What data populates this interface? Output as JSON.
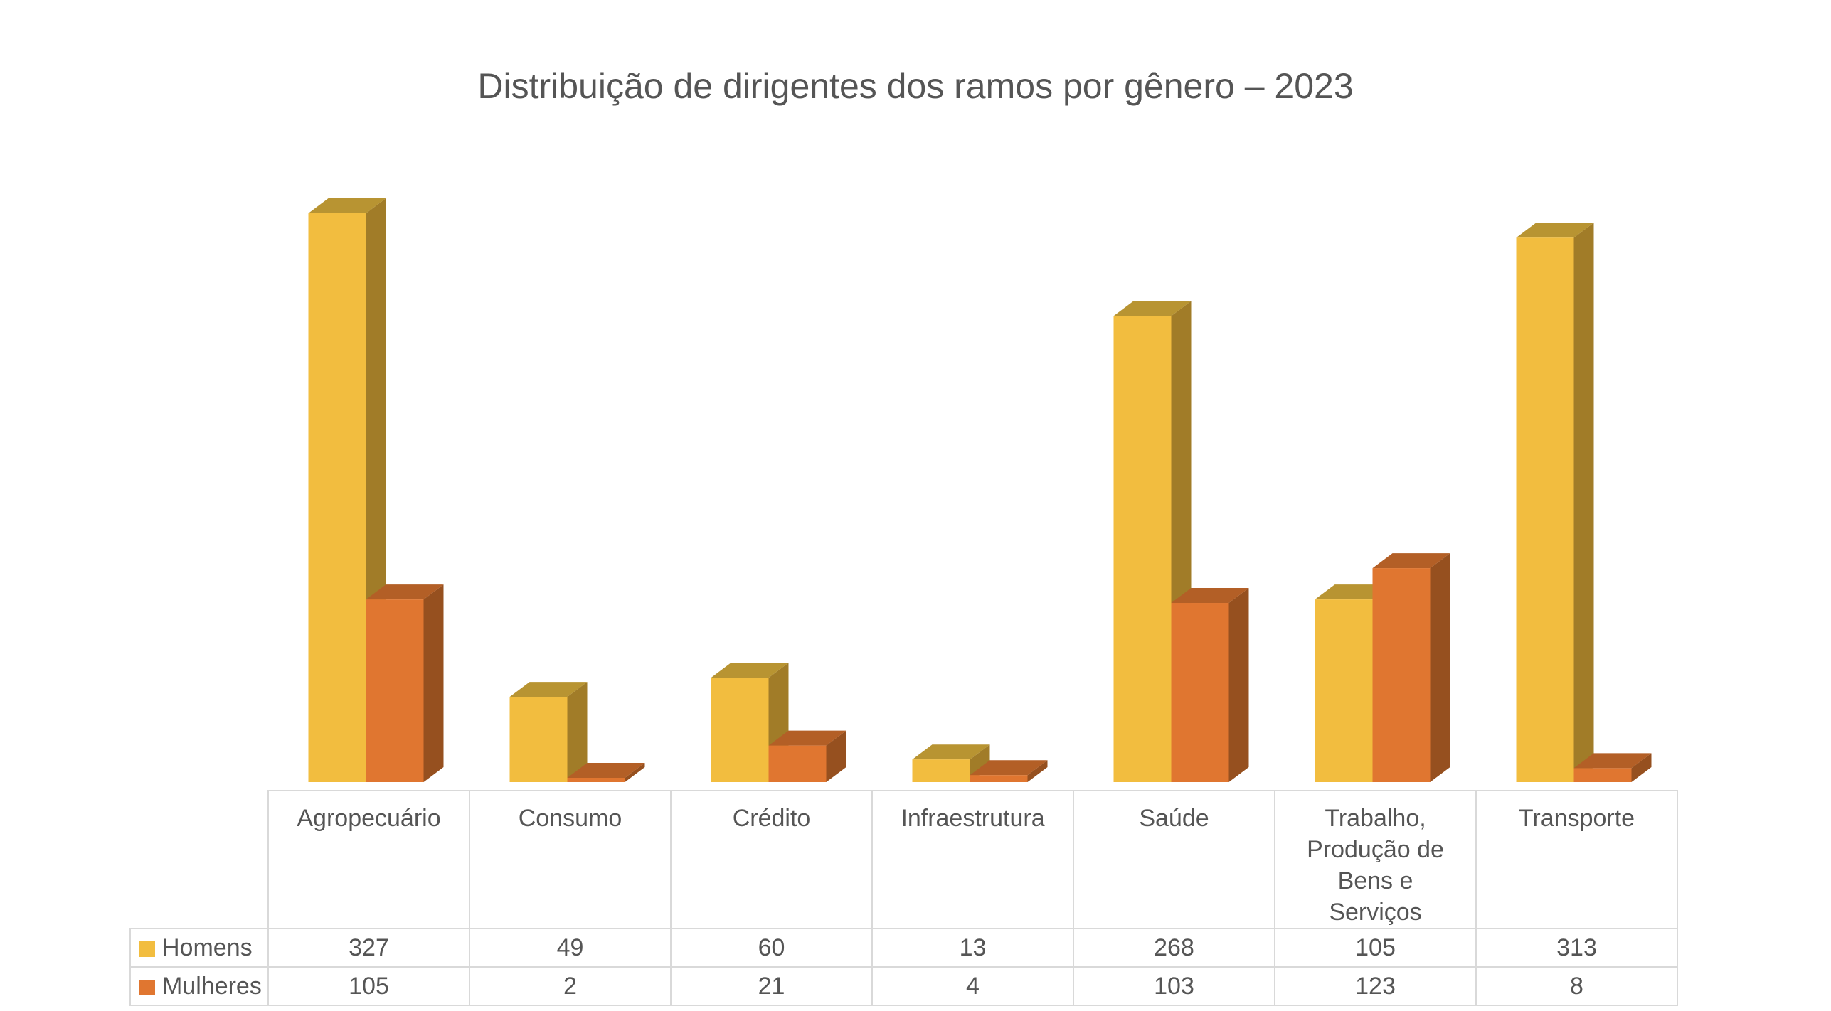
{
  "chart_data": {
    "type": "bar",
    "title": "Distribuição de dirigentes dos ramos por gênero – 2023",
    "categories": [
      "Agropecuário",
      "Consumo",
      "Crédito",
      "Infraestrutura",
      "Saúde",
      "Trabalho, Produção de Bens e Serviços",
      "Transporte"
    ],
    "series": [
      {
        "name": "Homens",
        "values": [
          327,
          49,
          60,
          13,
          268,
          105,
          313
        ],
        "color": "#F2BD3F",
        "side_color": "#A17C28",
        "top_color": "#B89432"
      },
      {
        "name": "Mulheres",
        "values": [
          105,
          2,
          21,
          4,
          103,
          123,
          8
        ],
        "color": "#E07630",
        "side_color": "#96501F",
        "top_color": "#B35F26"
      }
    ],
    "ylim": [
      0,
      327
    ],
    "legend": "data-table",
    "grid": false
  }
}
